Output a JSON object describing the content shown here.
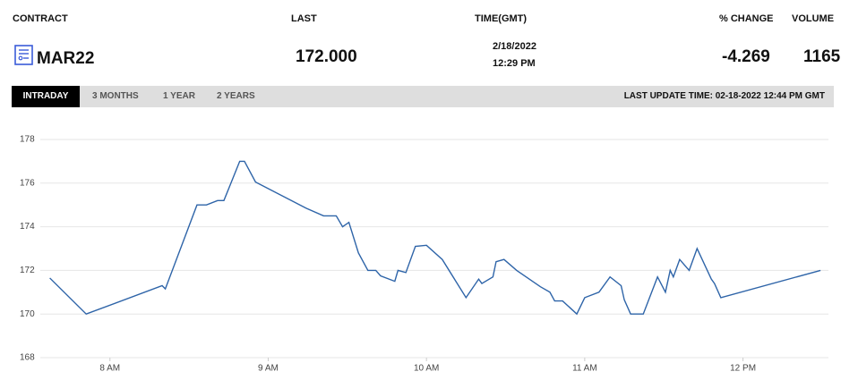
{
  "header": {
    "contract": "CONTRACT",
    "last": "LAST",
    "time": "TIME(GMT)",
    "change": "% CHANGE",
    "volume": "VOLUME"
  },
  "quote": {
    "contract": "MAR22",
    "last": "172.000",
    "date": "2/18/2022",
    "time": "12:29 PM",
    "change": "-4.269",
    "volume": "1165"
  },
  "tabs": [
    "INTRADAY",
    "3 MONTHS",
    "1 YEAR",
    "2 YEARS"
  ],
  "last_update": "LAST UPDATE TIME: 02-18-2022 12:44 PM GMT",
  "chart_data": {
    "type": "line",
    "x": [
      7.62,
      7.85,
      8.33,
      8.35,
      8.55,
      8.61,
      8.68,
      8.72,
      8.82,
      8.85,
      8.92,
      9.24,
      9.35,
      9.43,
      9.47,
      9.51,
      9.57,
      9.63,
      9.68,
      9.71,
      9.8,
      9.82,
      9.87,
      9.93,
      10.0,
      10.1,
      10.25,
      10.33,
      10.35,
      10.42,
      10.44,
      10.49,
      10.57,
      10.72,
      10.78,
      10.81,
      10.86,
      10.95,
      11.0,
      11.09,
      11.16,
      11.23,
      11.25,
      11.29,
      11.37,
      11.46,
      11.51,
      11.54,
      11.56,
      11.6,
      11.66,
      11.71,
      11.8,
      11.82,
      11.86,
      12.49
    ],
    "series": [
      {
        "name": "MAR22",
        "color": "#2e64a8",
        "values": [
          171.65,
          170.0,
          171.3,
          171.15,
          175.0,
          175.0,
          175.2,
          175.2,
          177.0,
          177.0,
          176.05,
          174.85,
          174.5,
          174.5,
          174.0,
          174.2,
          172.8,
          172.0,
          172.0,
          171.75,
          171.5,
          172.0,
          171.9,
          173.1,
          173.15,
          172.5,
          170.75,
          171.6,
          171.4,
          171.7,
          172.4,
          172.5,
          172.0,
          171.25,
          171.0,
          170.6,
          170.6,
          170.0,
          170.75,
          171.0,
          171.7,
          171.3,
          170.65,
          170.0,
          170.0,
          171.7,
          171.0,
          172.0,
          171.7,
          172.5,
          172.0,
          173.0,
          171.6,
          171.4,
          170.75,
          172.0
        ]
      }
    ],
    "xlim": [
      7.56,
      12.54
    ],
    "xticks": [
      {
        "value": 8,
        "label": "8 AM"
      },
      {
        "value": 9,
        "label": "9 AM"
      },
      {
        "value": 10,
        "label": "10 AM"
      },
      {
        "value": 11,
        "label": "11 AM"
      },
      {
        "value": 12,
        "label": "12 PM"
      }
    ],
    "ylim": [
      168,
      178
    ],
    "yticks": [
      168,
      170,
      172,
      174,
      176,
      178
    ],
    "grid": true
  }
}
